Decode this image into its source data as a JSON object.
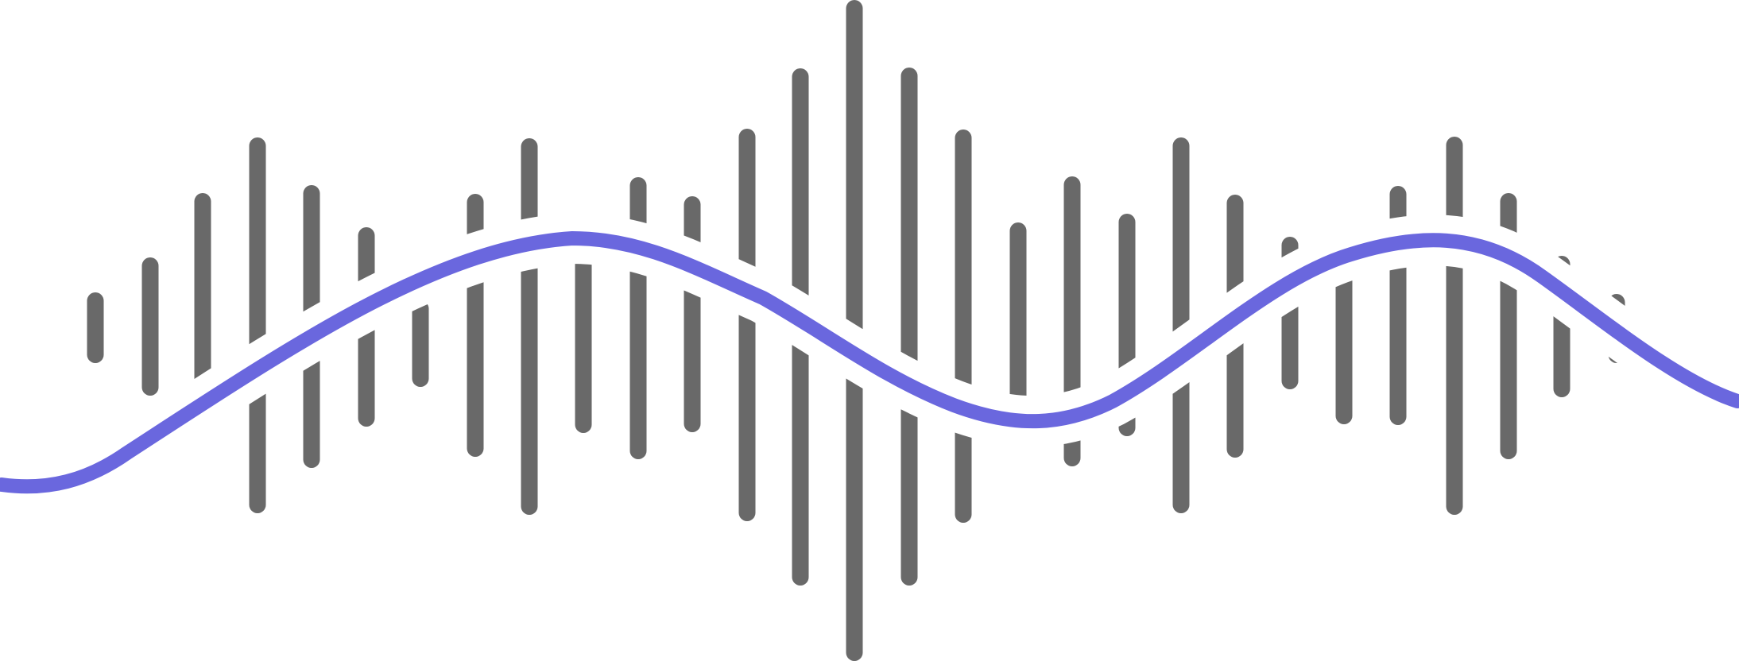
{
  "logo": {
    "name": "soundwave-logo",
    "bar_color": "#696969",
    "wave_color": "#6a67de",
    "background_color": "#ffffff",
    "bar_count": 31
  }
}
